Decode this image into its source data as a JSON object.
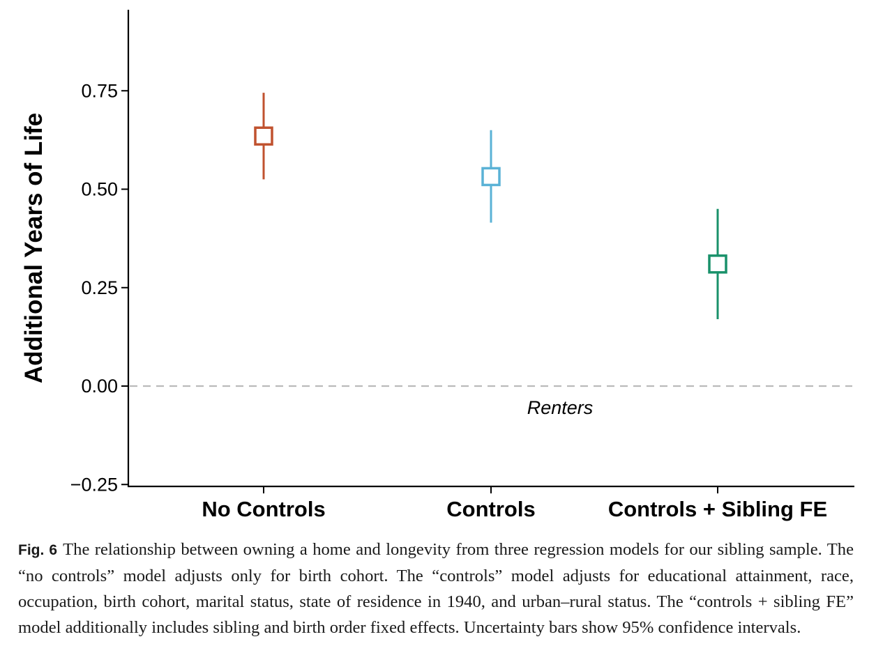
{
  "chart_data": {
    "type": "scatter",
    "title": "",
    "xlabel": "",
    "ylabel": "Additional Years of Life",
    "categories": [
      "No Controls",
      "Controls",
      "Controls + Sibling FE"
    ],
    "points": [
      {
        "category": "No Controls",
        "estimate": 0.635,
        "ci_low": 0.525,
        "ci_high": 0.745,
        "color": "#c0522f"
      },
      {
        "category": "Controls",
        "estimate": 0.532,
        "ci_low": 0.415,
        "ci_high": 0.65,
        "color": "#5ab2d6"
      },
      {
        "category": "Controls + Sibling FE",
        "estimate": 0.31,
        "ci_low": 0.17,
        "ci_high": 0.45,
        "color": "#19916a"
      }
    ],
    "ylim": [
      -0.25,
      0.95
    ],
    "yticks": [
      -0.25,
      0.0,
      0.25,
      0.5,
      0.75
    ],
    "ytick_labels": [
      "−0.25",
      "0.00",
      "0.25",
      "0.50",
      "0.75"
    ],
    "reference_line": {
      "y": 0.0,
      "style": "dashed",
      "color": "#bbbbbb"
    },
    "annotation": {
      "text": "Renters",
      "x_category": "Controls",
      "y": -0.055
    }
  },
  "caption": {
    "label": "Fig. 6",
    "text": "The relationship between owning a home and longevity from three regression models for our sibling sample. The “no controls” model adjusts only for birth cohort. The “controls” model adjusts for educational attainment, race, occupation, birth cohort, marital status, state of residence in 1940, and urban–rural status. The “controls + sibling FE” model additionally includes sibling and birth order fixed effects. Uncertainty bars show 95% confidence intervals."
  }
}
